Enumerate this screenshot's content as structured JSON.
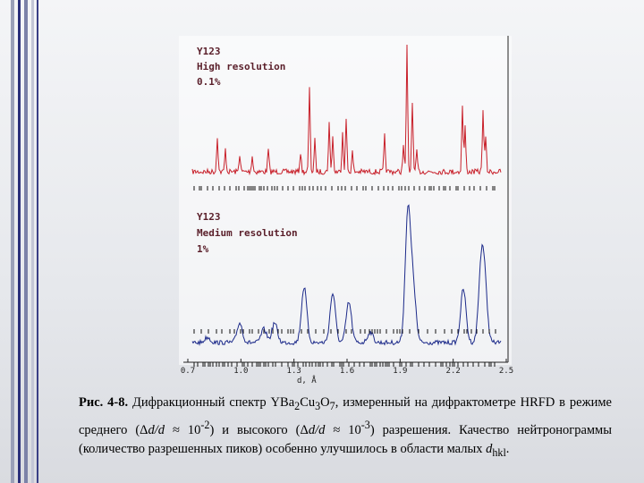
{
  "figure": {
    "high": {
      "sample": "Y123",
      "label": "High resolution",
      "resolution": "0.1%"
    },
    "medium": {
      "sample": "Y123",
      "label": "Medium resolution",
      "resolution": "1%"
    },
    "x_ticks": [
      "0.7",
      "1.0",
      "1.3",
      "1.6",
      "1.9",
      "2.2",
      "2.5"
    ],
    "x_label": "d, Å"
  },
  "caption": {
    "parts": [
      "Рис. 4-8.",
      " Дифракционный спектр YBa",
      "2",
      "Cu",
      "3",
      "O",
      "7",
      ", измеренный на дифрактометре HRFD в режиме среднего (Δ",
      "d/d",
      " ≈ 10",
      "-2",
      ") и высокого (Δ",
      "d/d",
      " ≈ 10",
      "-3",
      ") разрешения. Качество нейтронограммы (количество разрешенных пиков) особенно улучшилось в области малых ",
      "d",
      "hkl",
      "."
    ]
  }
}
